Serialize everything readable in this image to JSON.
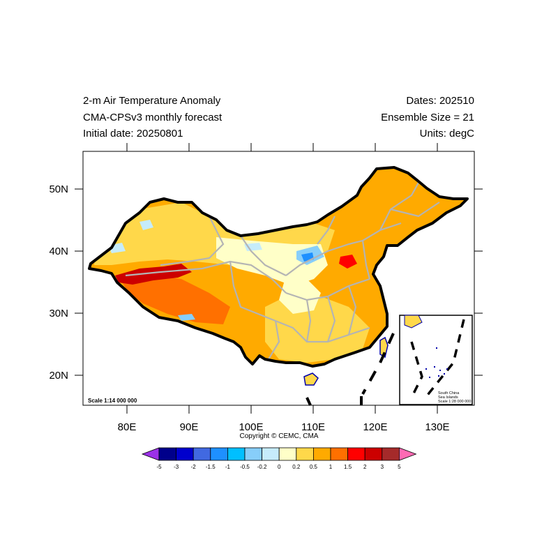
{
  "title": {
    "left": [
      "2-m Air Temperature Anomaly",
      "CMA-CPSv3 monthly forecast",
      "Initial date: 20250801"
    ],
    "right": [
      "Dates: 202510",
      "Ensemble Size = 21",
      "Units: degC"
    ]
  },
  "axes": {
    "lon_ticks": [
      "80E",
      "90E",
      "100E",
      "110E",
      "120E",
      "130E"
    ],
    "lat_ticks": [
      "50N",
      "40N",
      "30N",
      "20N"
    ]
  },
  "map": {
    "scale_text": "Scale 1:14 000 000",
    "inset_lines": [
      "South China",
      "Sea Islands",
      "Scale 1:28 000 000"
    ]
  },
  "copyright": "Copyright © CEMC, CMA",
  "colorbar": {
    "labels": [
      "-5",
      "-3",
      "-2",
      "-1.5",
      "-1",
      "-0.5",
      "-0.2",
      "0",
      "0.2",
      "0.5",
      "1",
      "1.5",
      "2",
      "3",
      "5"
    ],
    "under_color": "#9b30e8",
    "over_color": "#ff69b4",
    "colors": [
      "#00008b",
      "#0000cd",
      "#4169e1",
      "#1e90ff",
      "#00bfff",
      "#87cefa",
      "#c6ecfb",
      "#ffffc8",
      "#ffd84a",
      "#ffaa00",
      "#ff7000",
      "#ff0000",
      "#cc0000",
      "#a52a2a"
    ]
  }
}
